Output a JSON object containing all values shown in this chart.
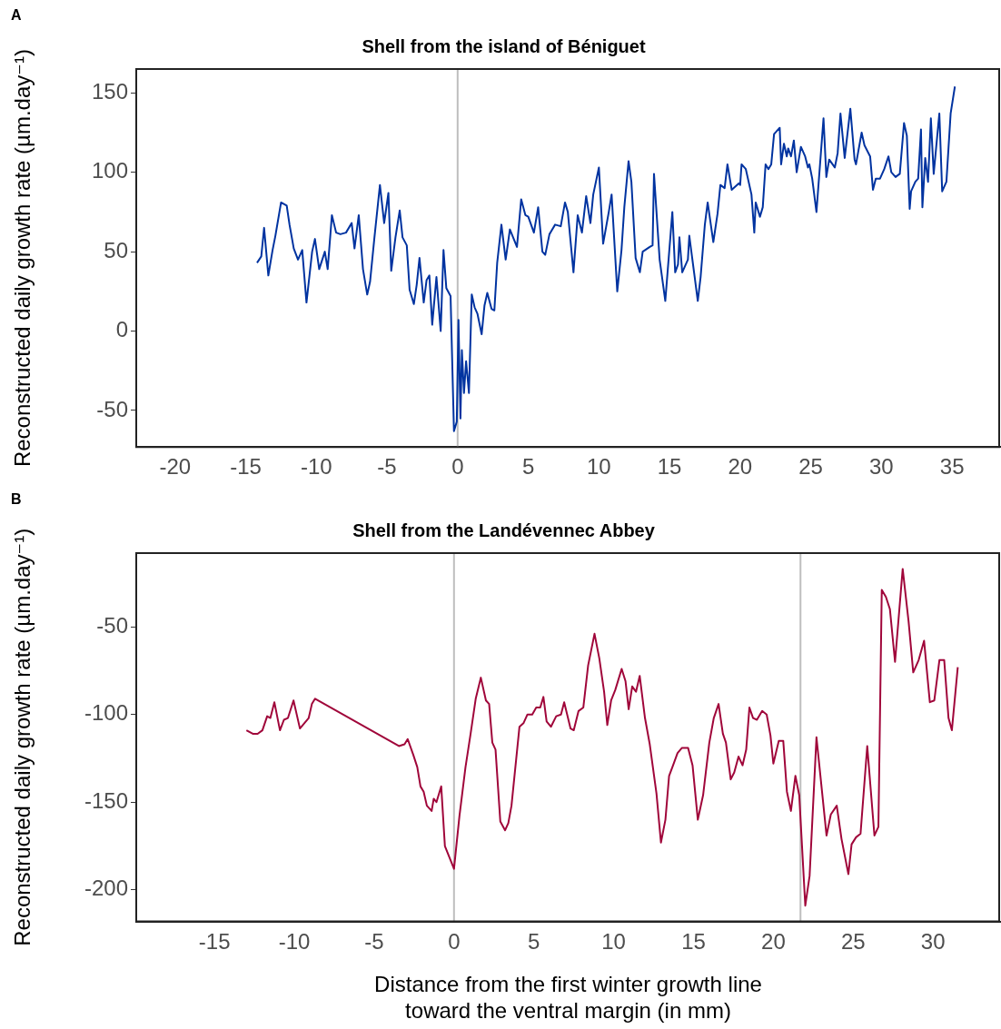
{
  "chart_data": [
    {
      "type": "line",
      "title": "Shell from the island of Béniguet",
      "ylabel": "Reconstructed daily growth rate (µm.day⁻¹)",
      "annotations": [
        "A"
      ],
      "xlim": [
        -22.75,
        38.4
      ],
      "xticks": [
        -20,
        -15,
        -10,
        -5,
        0,
        5,
        10,
        15,
        20,
        25,
        30,
        35
      ],
      "ylim": [
        -73,
        165
      ],
      "yticks": [
        -50,
        0,
        50,
        100,
        150
      ],
      "grid": false,
      "legend": false,
      "marker": "none",
      "line_style": "solid",
      "ref_lines": [
        {
          "axis": "x",
          "value": 0,
          "color": "#bebebe"
        }
      ],
      "series": [
        {
          "color": "#0033a0",
          "x": [
            -14.2,
            -13.9,
            -13.7,
            -13.4,
            -13.1,
            -12.9,
            -12.5,
            -12.1,
            -11.9,
            -11.6,
            -11.3,
            -11.0,
            -10.7,
            -10.3,
            -10.1,
            -9.8,
            -9.4,
            -9.2,
            -8.9,
            -8.6,
            -8.3,
            -7.9,
            -7.5,
            -7.3,
            -7.0,
            -6.7,
            -6.4,
            -6.2,
            -5.9,
            -5.5,
            -5.2,
            -4.9,
            -4.7,
            -4.4,
            -4.1,
            -3.9,
            -3.6,
            -3.4,
            -3.1,
            -2.9,
            -2.7,
            -2.4,
            -2.2,
            -2.0,
            -1.8,
            -1.5,
            -1.2,
            -1.0,
            -0.8,
            -0.5,
            -0.26,
            -0.06,
            0.06,
            0.2,
            0.3,
            0.45,
            0.6,
            0.8,
            1.0,
            1.2,
            1.4,
            1.7,
            1.9,
            2.1,
            2.4,
            2.6,
            2.8,
            3.1,
            3.4,
            3.7,
            4.2,
            4.5,
            4.8,
            5.0,
            5.4,
            5.7,
            6.0,
            6.2,
            6.5,
            6.9,
            7.3,
            7.6,
            7.8,
            8.2,
            8.5,
            8.8,
            9.1,
            9.4,
            9.6,
            10.0,
            10.3,
            10.7,
            10.9,
            11.3,
            11.6,
            11.8,
            12.1,
            12.3,
            12.6,
            12.9,
            13.1,
            13.6,
            13.8,
            13.9,
            14.3,
            14.7,
            15.2,
            15.4,
            15.6,
            15.7,
            15.9,
            16.3,
            16.4,
            17.0,
            17.2,
            17.5,
            17.7,
            18.1,
            18.4,
            18.6,
            18.9,
            19.1,
            19.4,
            19.9,
            20.0,
            20.1,
            20.4,
            20.8,
            21.0,
            21.1,
            21.4,
            21.6,
            21.8,
            22.0,
            22.2,
            22.4,
            22.8,
            22.9,
            23.1,
            23.3,
            23.4,
            23.6,
            23.8,
            24.0,
            24.3,
            24.6,
            24.8,
            24.9,
            25.1,
            25.4,
            25.9,
            26.1,
            26.3,
            26.7,
            26.9,
            27.1,
            27.4,
            27.8,
            28.1,
            28.2,
            28.6,
            28.8,
            29.2,
            29.4,
            29.6,
            29.9,
            30.2,
            30.5,
            30.7,
            31.0,
            31.3,
            31.6,
            31.8,
            32.0,
            32.1,
            32.4,
            32.6,
            32.8,
            32.9,
            33.1,
            33.3,
            33.5,
            33.7,
            34.1,
            34.3,
            34.6,
            34.9,
            35.2
          ],
          "values": [
            43,
            47,
            65,
            35,
            51,
            60,
            81,
            79,
            67,
            52,
            45,
            51,
            18,
            50,
            58,
            39,
            50,
            39,
            73,
            62,
            61,
            62,
            68,
            52,
            73,
            39,
            23,
            31,
            58,
            92,
            68,
            87,
            38,
            59,
            76,
            59,
            54,
            26,
            17,
            29,
            46,
            18,
            32,
            35,
            4,
            34,
            0,
            51,
            27,
            22,
            -63,
            -57,
            7,
            -55,
            -12,
            -39,
            -19,
            -39,
            23,
            15,
            11,
            -2,
            16,
            24,
            14,
            13,
            43,
            67,
            45,
            64,
            53,
            83,
            73,
            72,
            62,
            78,
            50,
            48,
            61,
            67,
            66,
            81,
            75,
            37,
            73,
            62,
            85,
            68,
            86,
            103,
            55,
            75,
            86,
            25,
            51,
            78,
            107,
            94,
            46,
            37,
            50,
            53,
            54,
            99,
            45,
            19,
            75,
            37,
            42,
            59,
            37,
            45,
            60,
            19,
            34,
            67,
            81,
            56,
            74,
            92,
            90,
            105,
            89,
            93,
            92,
            105,
            102,
            86,
            62,
            81,
            72,
            78,
            105,
            102,
            105,
            124,
            128,
            105,
            118,
            110,
            115,
            110,
            120,
            100,
            116,
            110,
            103,
            105,
            96,
            75,
            134,
            97,
            108,
            103,
            112,
            137,
            109,
            140,
            108,
            105,
            125,
            117,
            110,
            89,
            96,
            96,
            102,
            110,
            100,
            97,
            99,
            131,
            123,
            77,
            88,
            94,
            96,
            127,
            78,
            109,
            94,
            134,
            99,
            137,
            88,
            94,
            137,
            154
          ]
        }
      ]
    },
    {
      "type": "line",
      "title": "Shell from the Landévennec Abbey",
      "xlabel": "Distance from the first winter growth line\ntoward the ventral margin (in mm)",
      "ylabel": "Reconstructed daily growth rate (µm.day⁻¹)",
      "annotations": [
        "B"
      ],
      "xlim": [
        -19.9,
        34.2
      ],
      "xticks": [
        -15,
        -10,
        -5,
        0,
        5,
        10,
        15,
        20,
        25,
        30
      ],
      "ylim": [
        -218,
        -8
      ],
      "yticks": [
        -200,
        -150,
        -100,
        -50
      ],
      "grid": false,
      "legend": false,
      "marker": "none",
      "line_style": "solid",
      "ref_lines": [
        {
          "axis": "x",
          "value": 0,
          "color": "#bebebe"
        },
        {
          "axis": "x",
          "value": 21.7,
          "color": "#bebebe"
        }
      ],
      "series": [
        {
          "color": "#a0063a",
          "x": [
            -13.0,
            -12.6,
            -12.3,
            -12.0,
            -11.7,
            -11.5,
            -11.25,
            -10.9,
            -10.65,
            -10.4,
            -10.05,
            -9.65,
            -9.1,
            -8.9,
            -8.7,
            -3.45,
            -3.1,
            -2.9,
            -2.55,
            -2.3,
            -2.1,
            -1.9,
            -1.7,
            -1.4,
            -1.27,
            -1.1,
            -0.8,
            -0.57,
            0,
            0.34,
            0.72,
            1.04,
            1.36,
            1.68,
            2.0,
            2.2,
            2.4,
            2.6,
            2.9,
            3.2,
            3.4,
            3.6,
            4.1,
            4.35,
            4.6,
            4.9,
            5.15,
            5.4,
            5.6,
            5.8,
            6.07,
            6.4,
            6.7,
            6.9,
            7.3,
            7.5,
            7.8,
            8.1,
            8.4,
            8.8,
            9.1,
            9.4,
            9.6,
            9.84,
            10.1,
            10.5,
            10.74,
            10.94,
            11.16,
            11.4,
            11.63,
            11.96,
            12.26,
            12.68,
            12.96,
            13.24,
            13.47,
            13.72,
            14.0,
            14.28,
            14.66,
            14.94,
            15.27,
            15.6,
            15.99,
            16.27,
            16.57,
            16.84,
            17.03,
            17.33,
            17.55,
            17.82,
            18.07,
            18.3,
            18.5,
            18.73,
            18.97,
            19.3,
            19.58,
            19.82,
            20.0,
            20.34,
            20.62,
            20.85,
            21.1,
            21.38,
            21.62,
            22.0,
            22.27,
            22.7,
            23.33,
            23.6,
            23.97,
            24.27,
            24.7,
            24.9,
            25.18,
            25.46,
            25.88,
            26.33,
            26.58,
            26.79,
            27.05,
            27.3,
            27.62,
            28.1,
            28.47,
            28.76,
            29.1,
            29.44,
            29.8,
            30.08,
            30.4,
            30.7,
            30.97,
            31.18,
            31.55
          ],
          "values": [
            -109,
            -111,
            -111,
            -109,
            -101,
            -102,
            -93,
            -109,
            -103,
            -102,
            -92,
            -108,
            -102,
            -94,
            -91,
            -118,
            -117,
            -114,
            -123,
            -130,
            -141,
            -144,
            -152,
            -155,
            -148,
            -150,
            -141,
            -175,
            -188,
            -158,
            -130,
            -111,
            -91,
            -79,
            -92,
            -94,
            -116,
            -120,
            -161,
            -166,
            -162,
            -152,
            -107,
            -105,
            -100,
            -100,
            -96,
            -96,
            -90,
            -104,
            -107,
            -101,
            -100,
            -93,
            -108,
            -109,
            -98,
            -96,
            -72,
            -54,
            -68,
            -87,
            -106,
            -92,
            -86,
            -74,
            -81,
            -97,
            -84,
            -87,
            -78,
            -102,
            -117,
            -145,
            -173,
            -160,
            -135,
            -129,
            -122,
            -119,
            -119,
            -129,
            -160,
            -146,
            -116,
            -102,
            -94,
            -111,
            -116,
            -137,
            -133,
            -124,
            -129,
            -120,
            -96,
            -102,
            -103,
            -98,
            -100,
            -112,
            -128,
            -115,
            -115,
            -144,
            -155,
            -135,
            -146,
            -209,
            -192,
            -113,
            -169,
            -157,
            -152,
            -171,
            -191,
            -174,
            -170,
            -168,
            -118,
            -169,
            -164,
            -29,
            -33,
            -40,
            -70,
            -17,
            -47,
            -76,
            -69,
            -58,
            -93,
            -92,
            -69,
            -69,
            -102,
            -109,
            -73
          ]
        }
      ]
    }
  ]
}
